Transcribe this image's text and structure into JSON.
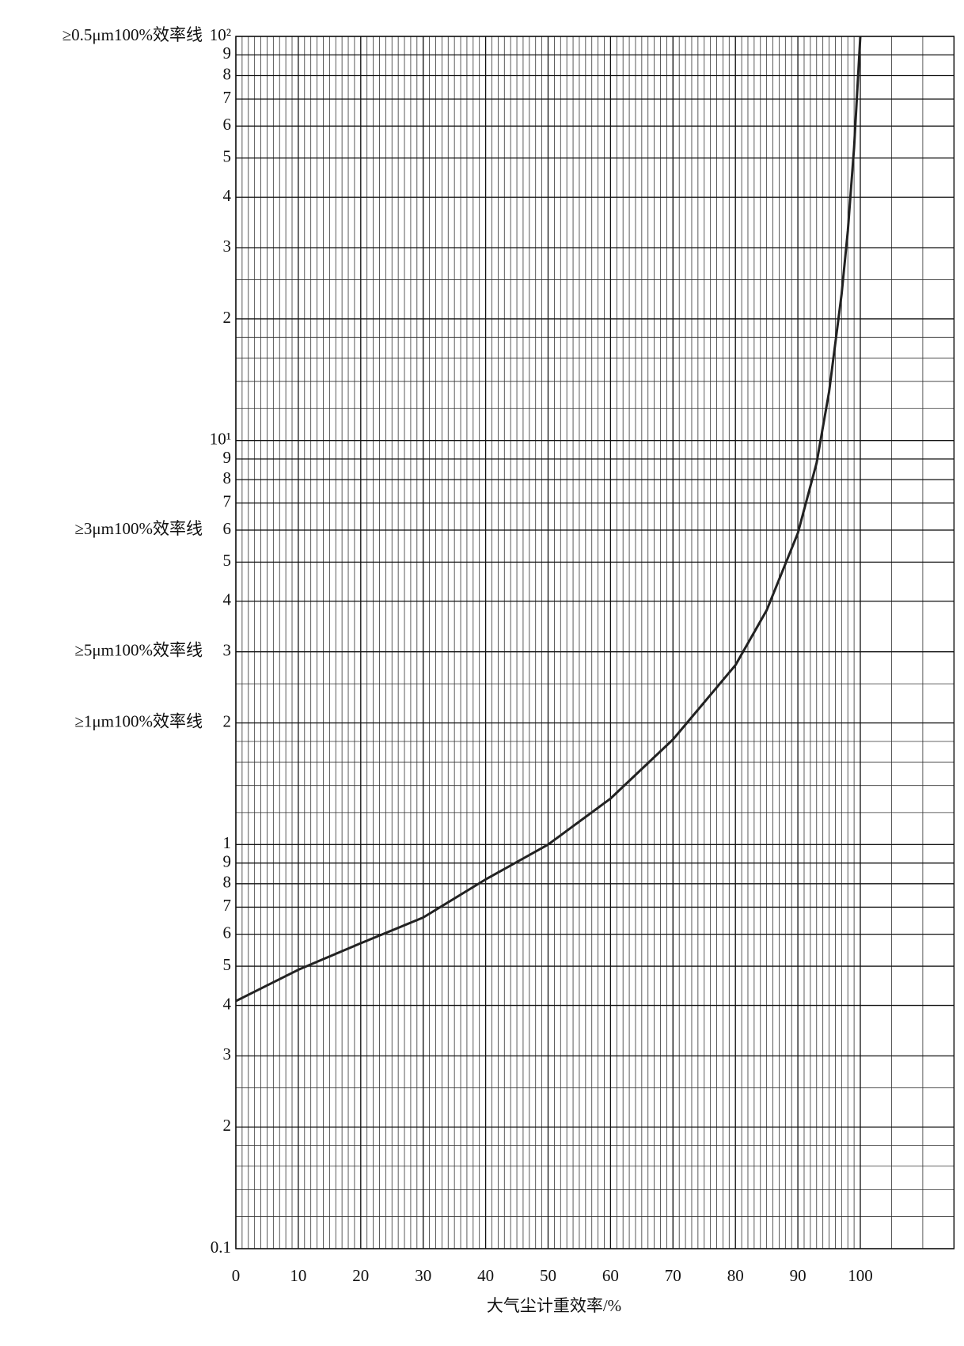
{
  "chart_data": {
    "type": "line",
    "xlabel": "大气尘计重效率/%",
    "x": [
      0,
      10,
      20,
      30,
      40,
      50,
      60,
      70,
      80,
      85,
      90,
      93,
      95,
      97,
      98,
      99,
      100
    ],
    "values": [
      0.41,
      0.49,
      0.57,
      0.66,
      0.82,
      1.0,
      1.3,
      1.82,
      2.78,
      3.8,
      5.9,
      8.8,
      13.2,
      23,
      33,
      53,
      100
    ],
    "color": "#222222",
    "xlim": [
      0,
      115
    ],
    "xticks": [
      0,
      10,
      20,
      30,
      40,
      50,
      60,
      70,
      80,
      90,
      100
    ],
    "ylim": [
      0.1,
      100
    ],
    "ylog": true,
    "grid": true,
    "yticks": [
      0.1,
      {
        "value": 0.2,
        "label": "2"
      },
      {
        "value": 0.3,
        "label": "3"
      },
      {
        "value": 0.4,
        "label": "4"
      },
      {
        "value": 0.5,
        "label": "5"
      },
      {
        "value": 0.6,
        "label": "6"
      },
      {
        "value": 0.7,
        "label": "7"
      },
      {
        "value": 0.8,
        "label": "8"
      },
      {
        "value": 0.9,
        "label": "9"
      },
      1,
      2,
      3,
      4,
      5,
      6,
      7,
      8,
      9,
      {
        "value": 10,
        "label": "10¹"
      },
      {
        "value": 20,
        "label": "2"
      },
      {
        "value": 30,
        "label": "3"
      },
      {
        "value": 40,
        "label": "4"
      },
      {
        "value": 50,
        "label": "5"
      },
      {
        "value": 60,
        "label": "6"
      },
      {
        "value": 70,
        "label": "7"
      },
      {
        "value": 80,
        "label": "8"
      },
      {
        "value": 90,
        "label": "9"
      },
      {
        "value": 100,
        "label": "10²"
      }
    ],
    "annotations": [
      {
        "text": "≥0.5μm100%效率线",
        "y": 100
      },
      {
        "text": "≥1μm100%效率线",
        "y": 2
      },
      {
        "text": "≥3μm100%效率线",
        "y": 6
      },
      {
        "text": "≥5μm100%效率线",
        "y": 3
      }
    ]
  }
}
